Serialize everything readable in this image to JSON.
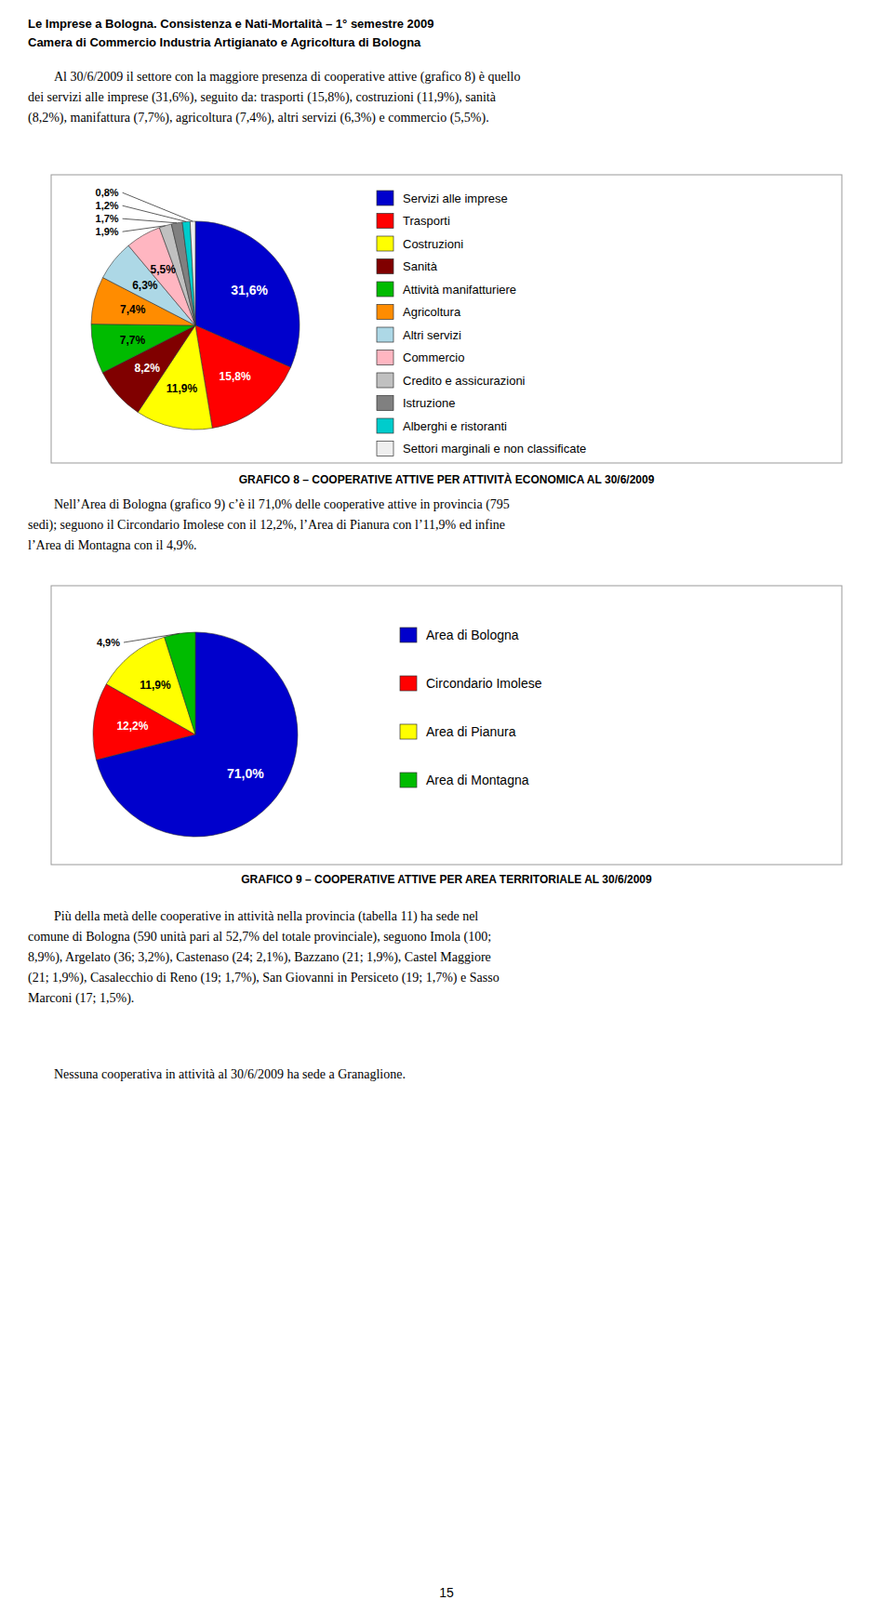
{
  "page_title_line1": "Le Imprese a Bologna. Consistenza e Nati-Mortalità – 1° semestre 2009",
  "page_title_line2": "Camera di Commercio Industria Artigianato e Agricoltura di Bologna",
  "paragraphs": [
    [
      "Al 30/6/2009 il settore con la maggiore presenza di cooperative attive (grafico 8) è quello",
      "dei servizi alle imprese (31,6%), seguito da: trasporti (15,8%), costruzioni (11,9%), sanità",
      "(8,2%), manifattura (7,7%), agricoltura (7,4%), altri servizi (6,3%) e commercio (5,5%)."
    ],
    [
      "Nell’Area di Bologna (grafico 9) c’è il 71,0% delle cooperative attive in provincia (795",
      "sedi); seguono il Circondario Imolese con il 12,2%, l’Area di Pianura con l’11,9% ed infine",
      "l’Area di Montagna con il 4,9%."
    ],
    [
      "Più della metà delle cooperative in attività nella provincia (tabella 11) ha sede nel",
      "comune di Bologna (590 unità pari al 52,7% del totale provinciale), seguono Imola (100;",
      "8,9%), Argelato (36; 3,2%), Castenaso (24; 2,1%), Bazzano (21; 1,9%), Castel Maggiore",
      "(21; 1,9%), Casalecchio di Reno (19; 1,7%), San Giovanni in Persiceto (19; 1,7%) e Sasso",
      "Marconi (17; 1,5%)."
    ],
    [
      "Nessuna cooperativa in attività al 30/6/2009 ha sede a Granaglione."
    ]
  ],
  "page_number": "15",
  "chart_data": [
    {
      "type": "pie",
      "title": "GRAFICO 8 – COOPERATIVE ATTIVE PER ATTIVITÀ ECONOMICA AL 30/6/2009",
      "categories": [
        "Servizi alle imprese",
        "Trasporti",
        "Costruzioni",
        "Sanità",
        "Attività manifatturiere",
        "Agricoltura",
        "Altri servizi",
        "Commercio",
        "Credito e assicurazioni",
        "Istruzione",
        "Alberghi e ristoranti",
        "Settori marginali e non classificate"
      ],
      "values": [
        31.6,
        15.8,
        11.9,
        8.2,
        7.7,
        7.4,
        6.3,
        5.5,
        1.9,
        1.7,
        1.2,
        0.8
      ],
      "value_labels": [
        "31,6%",
        "15,8%",
        "11,9%",
        "8,2%",
        "7,7%",
        "7,4%",
        "6,3%",
        "5,5%",
        "1,9%",
        "1,7%",
        "1,2%",
        "0,8%"
      ],
      "colors": [
        "#0000CC",
        "#FF0000",
        "#FFFF00",
        "#800000",
        "#00BB00",
        "#FF8C00",
        "#ADD8E6",
        "#FFB6C1",
        "#C0C0C0",
        "#808080",
        "#00CCCC",
        "#EFEFEF"
      ],
      "data_labels": true,
      "legend": "right"
    },
    {
      "type": "pie",
      "title": "GRAFICO 9 – COOPERATIVE ATTIVE PER AREA TERRITORIALE AL 30/6/2009",
      "categories": [
        "Area di Bologna",
        "Circondario Imolese",
        "Area di Pianura",
        "Area di Montagna"
      ],
      "values": [
        71.0,
        12.2,
        11.9,
        4.9
      ],
      "value_labels": [
        "71,0%",
        "12,2%",
        "11,9%",
        "4,9%"
      ],
      "colors": [
        "#0000CC",
        "#FF0000",
        "#FFFF00",
        "#00BB00"
      ],
      "data_labels": true,
      "legend": "right"
    }
  ]
}
